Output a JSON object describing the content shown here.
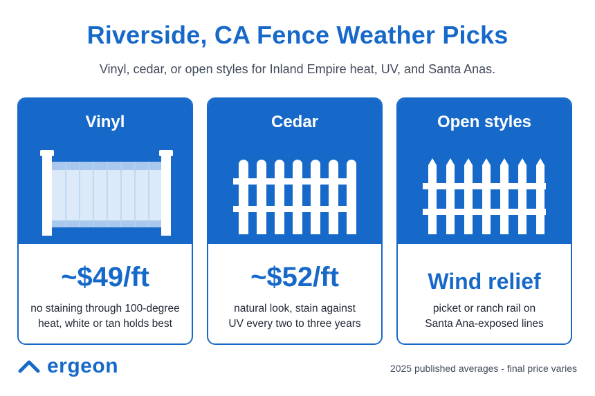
{
  "header": {
    "title": "Riverside, CA Fence Weather Picks",
    "subtitle": "Vinyl, cedar, or open styles for Inland Empire heat, UV, and Santa Anas."
  },
  "cards": [
    {
      "title": "Vinyl",
      "value": "~$49/ft",
      "desc_line1": "no staining through 100-degree",
      "desc_line2": "heat, white or tan holds best",
      "icon": "vinyl-fence-icon"
    },
    {
      "title": "Cedar",
      "value": "~$52/ft",
      "desc_line1": "natural look, stain against",
      "desc_line2": "UV every two to three years",
      "icon": "picket-fence-icon"
    },
    {
      "title": "Open styles",
      "value": "Wind relief",
      "desc_line1": "picket or ranch rail on",
      "desc_line2": "Santa Ana-exposed lines",
      "icon": "pointed-picket-fence-icon"
    }
  ],
  "footer": {
    "logo_text": "ergeon",
    "note": "2025 published averages - final price varies"
  },
  "colors": {
    "brand_blue": "#1769c9",
    "vinyl_panel": "#dbe9f8",
    "vinyl_rail": "#a9c8ee"
  }
}
